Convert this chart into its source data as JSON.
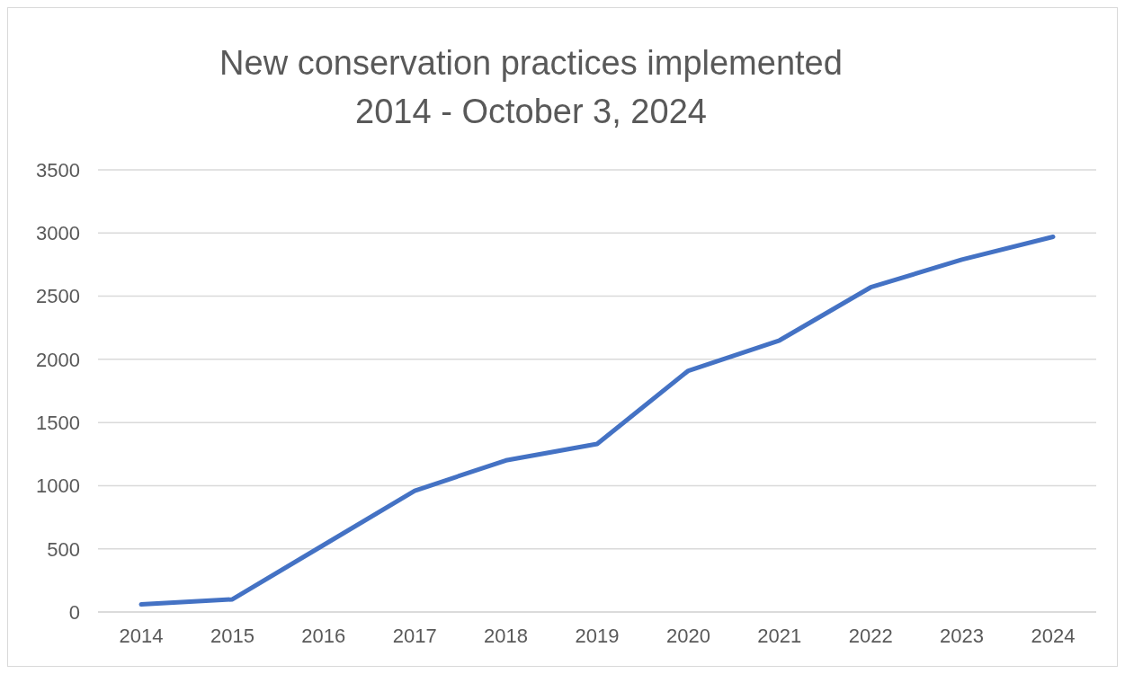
{
  "chart_data": {
    "type": "line",
    "title": "New conservation practices implemented",
    "subtitle": "2014 - October 3, 2024",
    "categories": [
      "2014",
      "2015",
      "2016",
      "2017",
      "2018",
      "2019",
      "2020",
      "2021",
      "2022",
      "2023",
      "2024"
    ],
    "series": [
      {
        "color": "#4472c4",
        "values": [
          60,
          100,
          530,
          960,
          1200,
          1330,
          1910,
          2150,
          2570,
          2790,
          2970
        ]
      }
    ],
    "ylim": [
      0,
      3500
    ],
    "yticks": [
      0,
      500,
      1000,
      1500,
      2000,
      2500,
      3000,
      3500
    ],
    "grid": "y",
    "legend": false,
    "marker": "none",
    "line_style": "solid"
  }
}
